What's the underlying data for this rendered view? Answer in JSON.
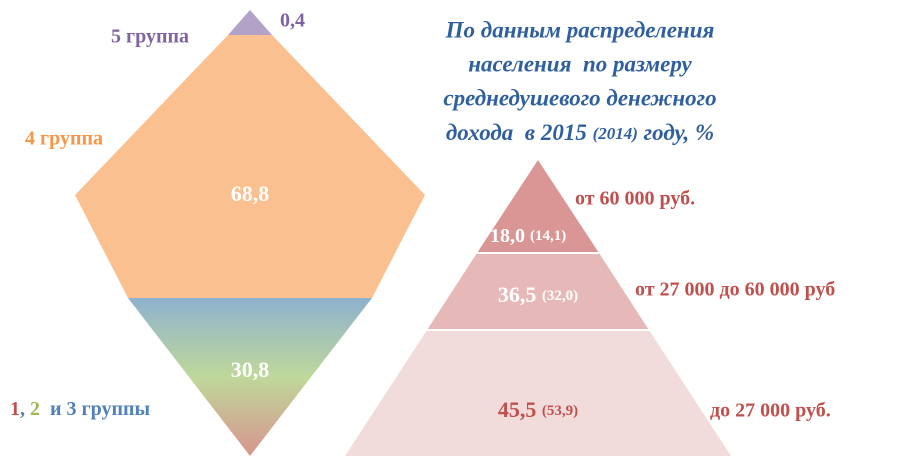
{
  "title": {
    "lines": [
      "По данным распределения",
      "населения  по размеру",
      "среднедушевого денежного",
      "дохода  в 2015",
      "(2014)",
      "году, %"
    ]
  },
  "left": {
    "group5": {
      "label": "5 группа",
      "value": "0,4"
    },
    "group4": {
      "label": "4 группа",
      "value": "68,8"
    },
    "group123": {
      "label_parts": [
        "1",
        ", ",
        "2",
        "  и 3 группы"
      ],
      "value": "30,8"
    }
  },
  "right": {
    "segments": [
      {
        "value": "18,0",
        "prev": "(14,1)",
        "label": "от 60 000 руб."
      },
      {
        "value": "36,5",
        "prev": "(32,0)",
        "label": "от 27 000 до 60 000 руб"
      },
      {
        "value": "45,5",
        "prev": "(53,9)",
        "label": "до 27 000 руб."
      }
    ]
  }
}
